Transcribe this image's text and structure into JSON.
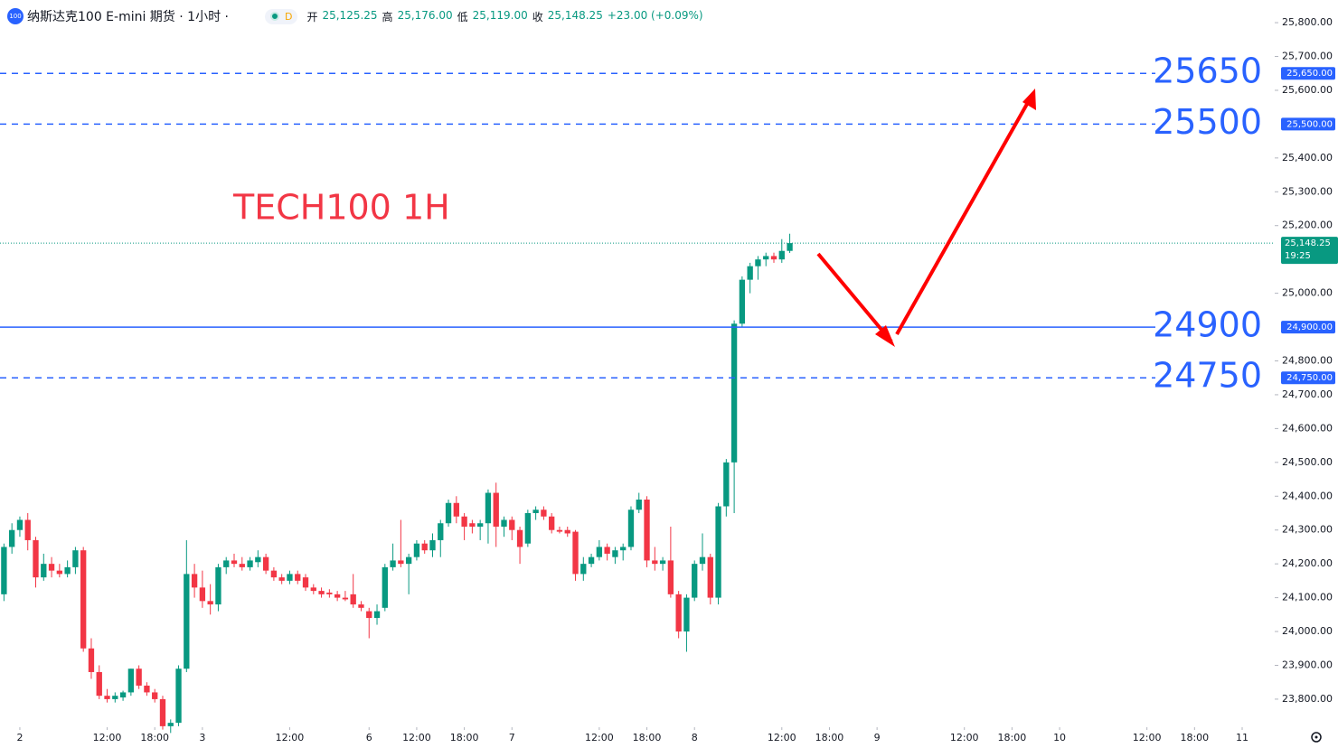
{
  "header": {
    "logo": "100",
    "title": "纳斯达克100 E-mini 期货 · 1小时 ·",
    "status": "D",
    "ohlc": [
      {
        "label": "开",
        "value": "25,125.25"
      },
      {
        "label": "高",
        "value": "25,176.00"
      },
      {
        "label": "低",
        "value": "25,119.00"
      },
      {
        "label": "收",
        "value": "25,148.25"
      }
    ],
    "change": "+23.00 (+0.09%)"
  },
  "chart_data": {
    "type": "candlestick",
    "annotation": "TECH100 1H",
    "up_color": "#089981",
    "down_color": "#f23645",
    "x": [
      -2,
      -1,
      0,
      1,
      2,
      3,
      4,
      5,
      6,
      7,
      8,
      9,
      10,
      11,
      12,
      13,
      14,
      15,
      16,
      17,
      18,
      19,
      20,
      21,
      22,
      23,
      24,
      25,
      26,
      27,
      28,
      29,
      30,
      31,
      32,
      33,
      34,
      35,
      36,
      37,
      38,
      39,
      40,
      41,
      42,
      43,
      44,
      45,
      46,
      47,
      48,
      49,
      50,
      51,
      52,
      53,
      54,
      55,
      56,
      57,
      58,
      59,
      60,
      61,
      62,
      63,
      64,
      65,
      66,
      67,
      68,
      69,
      70,
      71,
      72,
      73,
      74,
      75,
      76,
      77,
      78,
      79,
      80,
      81,
      82,
      83,
      84,
      85,
      86,
      87,
      88,
      89,
      90,
      91,
      92,
      93,
      94,
      95,
      96,
      97
    ],
    "open": [
      24110,
      24250,
      24300,
      24330,
      24270,
      24160,
      24200,
      24180,
      24170,
      24190,
      24240,
      23950,
      23880,
      23810,
      23800,
      23805,
      23820,
      23890,
      23840,
      23820,
      23800,
      23720,
      23730,
      23890,
      24170,
      24130,
      24090,
      24080,
      24190,
      24210,
      24200,
      24190,
      24205,
      24220,
      24180,
      24160,
      24150,
      24170,
      24160,
      24130,
      24120,
      24115,
      24110,
      24100,
      24110,
      24080,
      24060,
      24040,
      24070,
      24190,
      24210,
      24200,
      24220,
      24260,
      24240,
      24270,
      24320,
      24380,
      24340,
      24320,
      24310,
      24320,
      24410,
      24310,
      24330,
      24300,
      24260,
      24350,
      24360,
      24340,
      24300,
      24300,
      24295,
      24170,
      24200,
      24220,
      24250,
      24220,
      24240,
      24250,
      24360,
      24390,
      24210,
      24200,
      24210,
      24110,
      24000,
      24100,
      24200,
      24220,
      24100,
      24370,
      24500,
      24910,
      25040,
      25080,
      25100,
      25110,
      25100,
      25125.25
    ],
    "high": [
      24260,
      24320,
      24340,
      24350,
      24280,
      24230,
      24220,
      24200,
      24210,
      24250,
      24250,
      23980,
      23900,
      23830,
      23820,
      23825,
      23890,
      23900,
      23850,
      23830,
      23810,
      23740,
      23900,
      24270,
      24200,
      24180,
      24140,
      24200,
      24220,
      24230,
      24220,
      24220,
      24240,
      24230,
      24190,
      24170,
      24180,
      24180,
      24170,
      24140,
      24130,
      24125,
      24120,
      24120,
      24170,
      24090,
      24070,
      24080,
      24200,
      24260,
      24330,
      24230,
      24270,
      24270,
      24290,
      24330,
      24390,
      24400,
      24350,
      24330,
      24330,
      24420,
      24440,
      24340,
      24340,
      24310,
      24360,
      24370,
      24370,
      24350,
      24310,
      24310,
      24300,
      24220,
      24230,
      24270,
      24260,
      24250,
      24260,
      24370,
      24410,
      24400,
      24250,
      24220,
      24310,
      24120,
      24110,
      24210,
      24290,
      24230,
      24380,
      24510,
      24920,
      25050,
      25090,
      25110,
      25120,
      25120,
      25160,
      25176
    ],
    "low": [
      24090,
      24230,
      24280,
      24240,
      24130,
      24150,
      24160,
      24160,
      24160,
      24170,
      23940,
      23860,
      23800,
      23790,
      23790,
      23795,
      23810,
      23830,
      23810,
      23790,
      23710,
      23700,
      23720,
      23880,
      24100,
      24070,
      24050,
      24060,
      24170,
      24190,
      24180,
      24180,
      24190,
      24170,
      24150,
      24140,
      24140,
      24140,
      24120,
      24110,
      24100,
      24100,
      24090,
      24090,
      24070,
      24060,
      23980,
      24020,
      24060,
      24180,
      24190,
      24110,
      24210,
      24230,
      24220,
      24220,
      24310,
      24320,
      24270,
      24290,
      24270,
      24260,
      24250,
      24280,
      24270,
      24200,
      24250,
      24330,
      24330,
      24290,
      24290,
      24280,
      24150,
      24150,
      24190,
      24210,
      24210,
      24200,
      24210,
      24240,
      24350,
      24190,
      24180,
      24180,
      24100,
      23980,
      23940,
      24090,
      24180,
      24080,
      24080,
      24340,
      24350,
      24900,
      25000,
      25040,
      25080,
      25090,
      25090,
      25119
    ],
    "close": [
      24250,
      24300,
      24330,
      24270,
      24160,
      24200,
      24180,
      24170,
      24190,
      24240,
      23950,
      23880,
      23810,
      23800,
      23810,
      23820,
      23890,
      23840,
      23820,
      23800,
      23720,
      23730,
      23890,
      24170,
      24130,
      24090,
      24080,
      24190,
      24210,
      24200,
      24190,
      24210,
      24220,
      24180,
      24160,
      24150,
      24170,
      24150,
      24130,
      24120,
      24110,
      24110,
      24100,
      24095,
      24080,
      24070,
      24040,
      24060,
      24190,
      24210,
      24200,
      24220,
      24260,
      24240,
      24270,
      24320,
      24380,
      24340,
      24310,
      24310,
      24320,
      24410,
      24310,
      24330,
      24300,
      24250,
      24350,
      24360,
      24340,
      24300,
      24295,
      24290,
      24170,
      24200,
      24220,
      24250,
      24230,
      24240,
      24250,
      24360,
      24390,
      24210,
      24200,
      24210,
      24110,
      24000,
      24100,
      24200,
      24220,
      24100,
      24370,
      24500,
      24910,
      25040,
      25080,
      25100,
      25110,
      25100,
      25125.25,
      25148.25
    ],
    "xlim": [
      -2.5,
      158.1
    ],
    "xticks": [
      {
        "value": 0,
        "label": "2"
      },
      {
        "value": 11,
        "label": "12:00"
      },
      {
        "value": 17,
        "label": "18:00"
      },
      {
        "value": 23,
        "label": "3"
      },
      {
        "value": 34,
        "label": "12:00"
      },
      {
        "value": 44,
        "label": "6"
      },
      {
        "value": 50,
        "label": "12:00"
      },
      {
        "value": 56,
        "label": "18:00"
      },
      {
        "value": 62,
        "label": "7"
      },
      {
        "value": 73,
        "label": "12:00"
      },
      {
        "value": 79,
        "label": "18:00"
      },
      {
        "value": 85,
        "label": "8"
      },
      {
        "value": 96,
        "label": "12:00"
      },
      {
        "value": 102,
        "label": "18:00"
      },
      {
        "value": 108,
        "label": "9"
      },
      {
        "value": 119,
        "label": "12:00"
      },
      {
        "value": 125,
        "label": "18:00"
      },
      {
        "value": 131,
        "label": "10"
      },
      {
        "value": 142,
        "label": "12:00"
      },
      {
        "value": 148,
        "label": "18:00"
      },
      {
        "value": 154,
        "label": "11"
      }
    ],
    "ylim": [
      23717,
      25867
    ],
    "yticks": [
      {
        "value": 25800,
        "label": "25,800.00"
      },
      {
        "value": 25700,
        "label": "25,700.00"
      },
      {
        "value": 25600,
        "label": "25,600.00"
      },
      {
        "value": 25400,
        "label": "25,400.00"
      },
      {
        "value": 25300,
        "label": "25,300.00"
      },
      {
        "value": 25200,
        "label": "25,200.00"
      },
      {
        "value": 25000,
        "label": "25,000.00"
      },
      {
        "value": 24800,
        "label": "24,800.00"
      },
      {
        "value": 24700,
        "label": "24,700.00"
      },
      {
        "value": 24600,
        "label": "24,600.00"
      },
      {
        "value": 24500,
        "label": "24,500.00"
      },
      {
        "value": 24400,
        "label": "24,400.00"
      },
      {
        "value": 24300,
        "label": "24,300.00"
      },
      {
        "value": 24200,
        "label": "24,200.00"
      },
      {
        "value": 24100,
        "label": "24,100.00"
      },
      {
        "value": 24000,
        "label": "24,000.00"
      },
      {
        "value": 23900,
        "label": "23,900.00"
      },
      {
        "value": 23800,
        "label": "23,800.00"
      }
    ],
    "levels": [
      {
        "value": 25650,
        "label": "25650",
        "tag": "25,650.00",
        "style": "dashed"
      },
      {
        "value": 25500,
        "label": "25500",
        "tag": "25,500.00",
        "style": "dashed"
      },
      {
        "value": 24900,
        "label": "24900",
        "tag": "24,900.00",
        "style": "solid"
      },
      {
        "value": 24750,
        "label": "24750",
        "tag": "24,750.00",
        "style": "dashed"
      }
    ],
    "level_color": "#2962ff",
    "last_price": {
      "value": 25148.25,
      "label": "25,148.25",
      "countdown": "19:25"
    }
  }
}
